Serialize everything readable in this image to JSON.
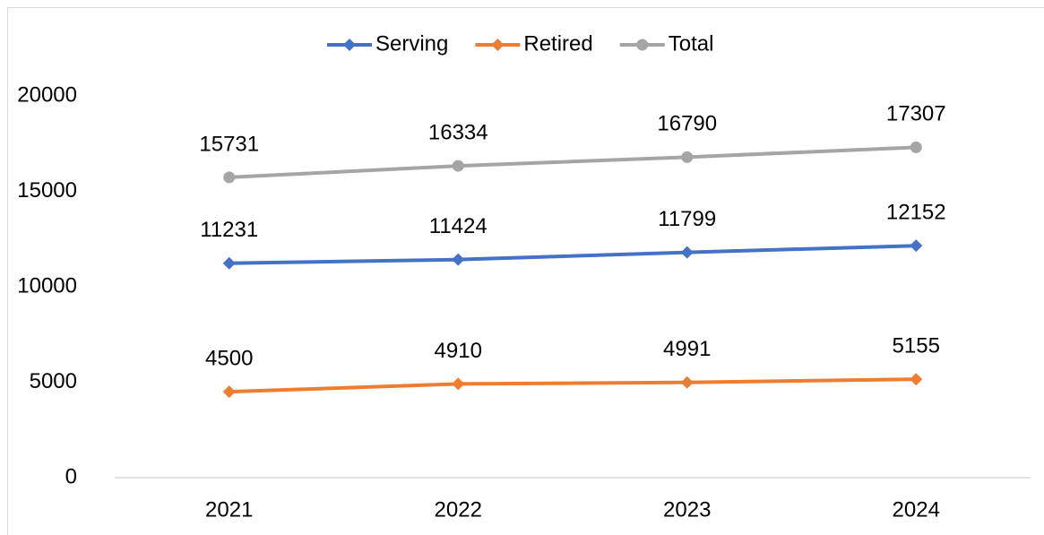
{
  "chart_data": {
    "type": "line",
    "categories": [
      "2021",
      "2022",
      "2023",
      "2024"
    ],
    "series": [
      {
        "name": "Serving",
        "color": "#4472c4",
        "marker": "diamond",
        "values": [
          11231,
          11424,
          11799,
          12152
        ]
      },
      {
        "name": "Retired",
        "color": "#ed7d31",
        "marker": "diamond",
        "values": [
          4500,
          4910,
          4991,
          5155
        ]
      },
      {
        "name": "Total",
        "color": "#a5a5a5",
        "marker": "circle",
        "values": [
          15731,
          16334,
          16790,
          17307
        ]
      }
    ],
    "ylim": [
      0,
      20000
    ],
    "yticks": [
      0,
      5000,
      10000,
      15000,
      20000
    ],
    "grid": false,
    "legend": "top"
  }
}
